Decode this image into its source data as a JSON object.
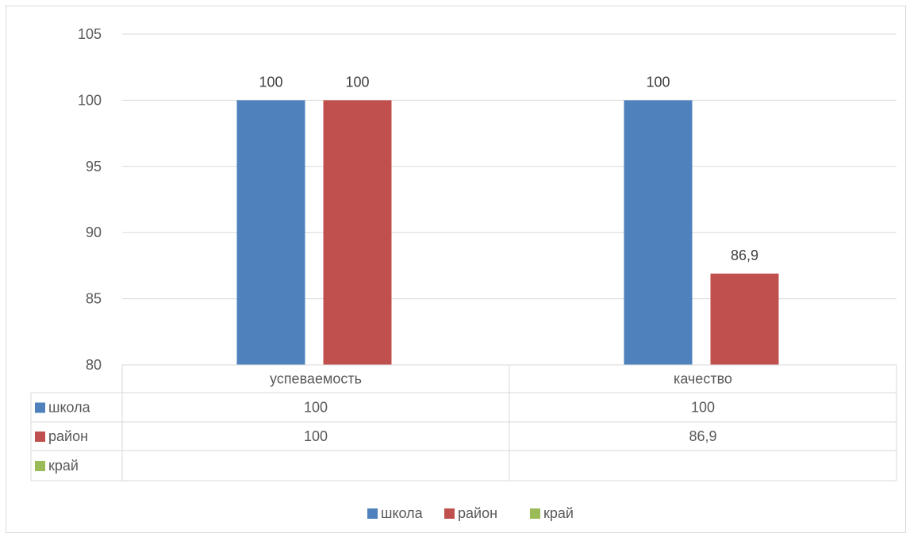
{
  "chart_data": {
    "type": "bar",
    "categories": [
      "успеваемость",
      "качество"
    ],
    "series": [
      {
        "name": "школа",
        "values": [
          100,
          100
        ],
        "color": "#4f81bd"
      },
      {
        "name": "район",
        "values": [
          100,
          86.9
        ],
        "color": "#c0504d"
      },
      {
        "name": "край",
        "values": [
          null,
          null
        ],
        "color": "#9bbb59"
      }
    ],
    "data_labels": [
      [
        "100",
        "100"
      ],
      [
        "100",
        "86,9"
      ],
      [
        "",
        ""
      ]
    ],
    "ylim": [
      80,
      105
    ],
    "yticks": [
      80,
      85,
      90,
      95,
      100,
      105
    ],
    "grid": true,
    "legend": "bottom",
    "data_table": true
  }
}
